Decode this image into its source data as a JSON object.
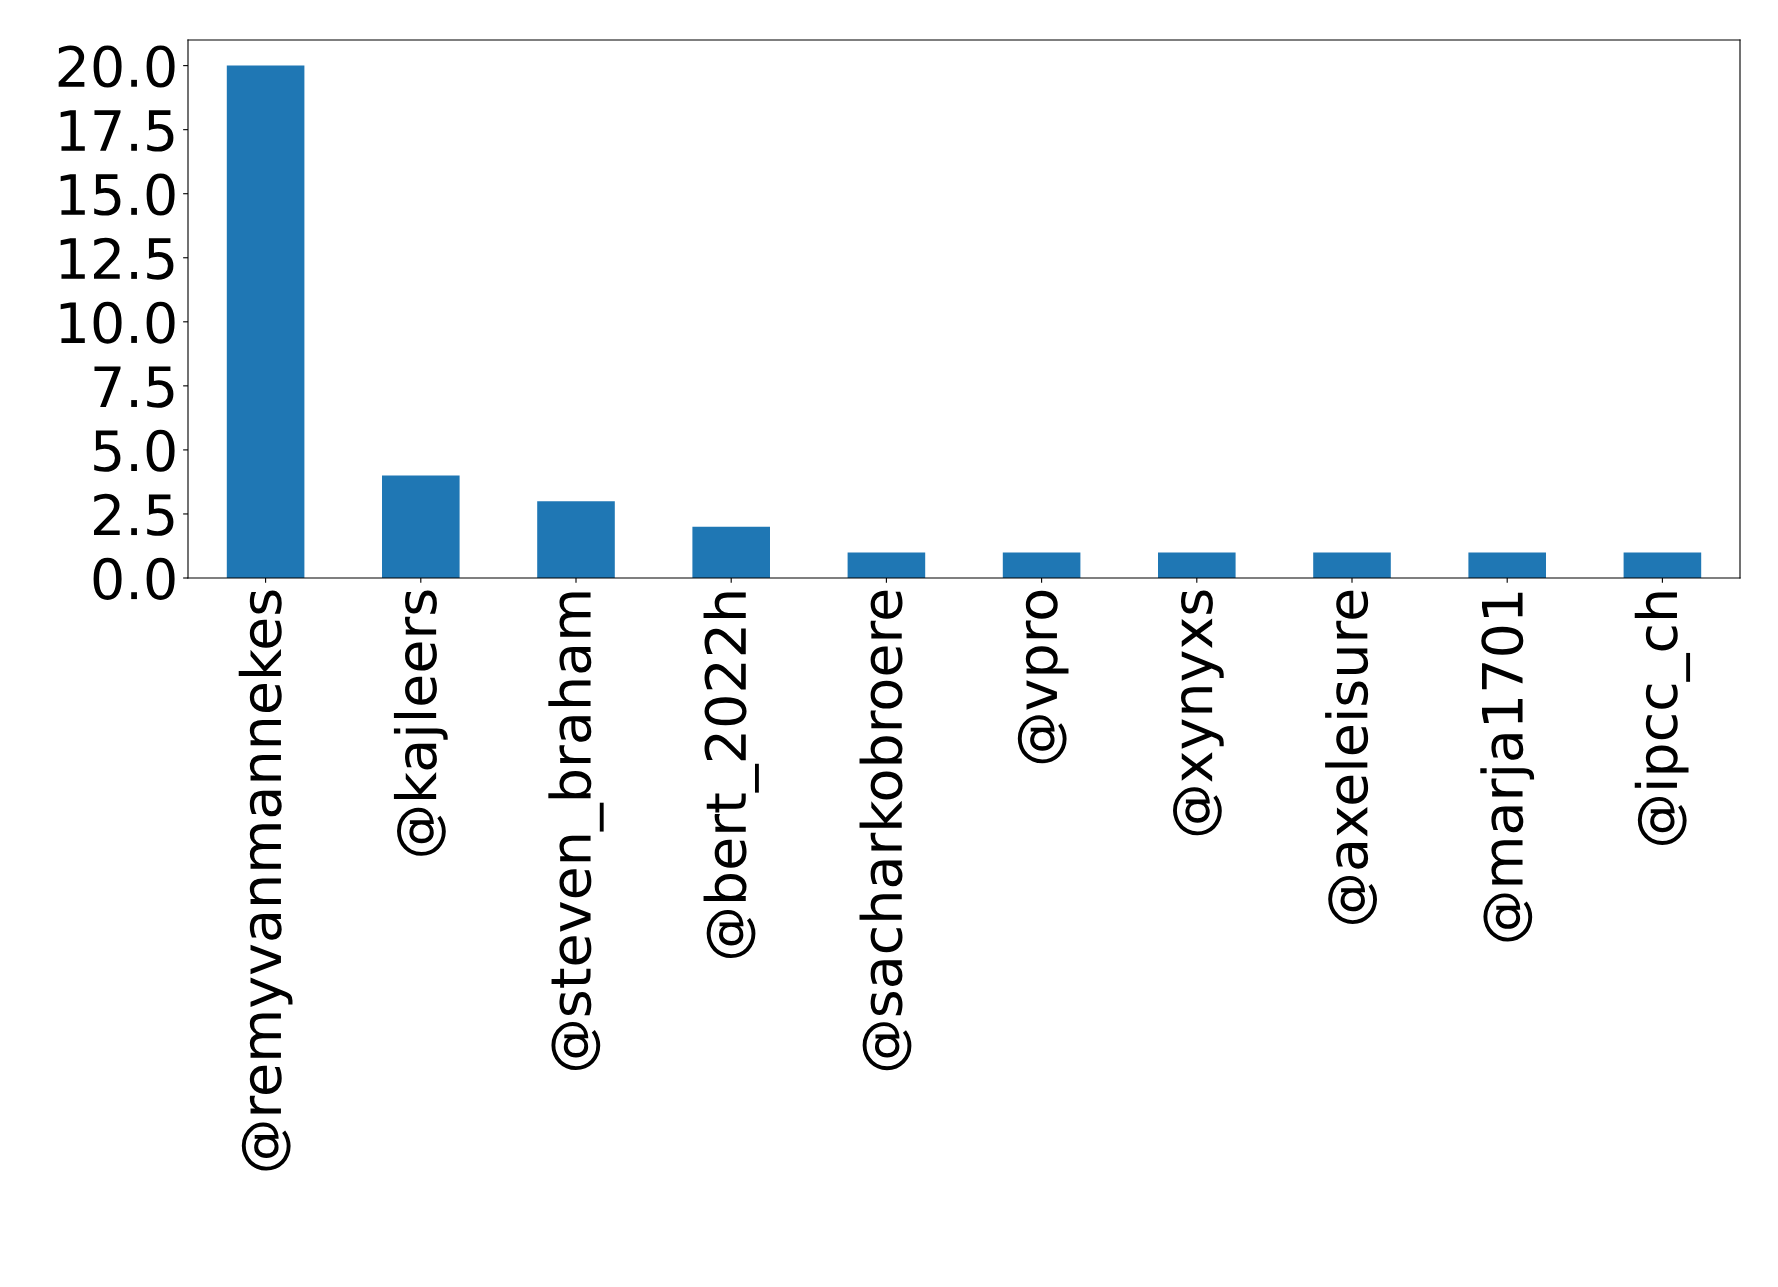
{
  "chart_data": {
    "type": "bar",
    "categories": [
      "@remyvanmannekes",
      "@kajleers",
      "@steven_braham",
      "@bert_2022h",
      "@sacharkobroere",
      "@vpro",
      "@xynyxs",
      "@axeleisure",
      "@marja1701",
      "@ipcc_ch"
    ],
    "values": [
      20,
      4,
      3,
      2,
      1,
      1,
      1,
      1,
      1,
      1
    ],
    "color": "#1f77b4",
    "ylim": [
      0,
      21
    ],
    "yticks": [
      {
        "value": 0,
        "label": "0.0"
      },
      {
        "value": 2.5,
        "label": "2.5"
      },
      {
        "value": 5,
        "label": "5.0"
      },
      {
        "value": 7.5,
        "label": "7.5"
      },
      {
        "value": 10,
        "label": "10.0"
      },
      {
        "value": 12.5,
        "label": "12.5"
      },
      {
        "value": 15,
        "label": "15.0"
      },
      {
        "value": 17.5,
        "label": "17.5"
      },
      {
        "value": 20,
        "label": "20.0"
      }
    ],
    "grid": false,
    "legend": false
  }
}
